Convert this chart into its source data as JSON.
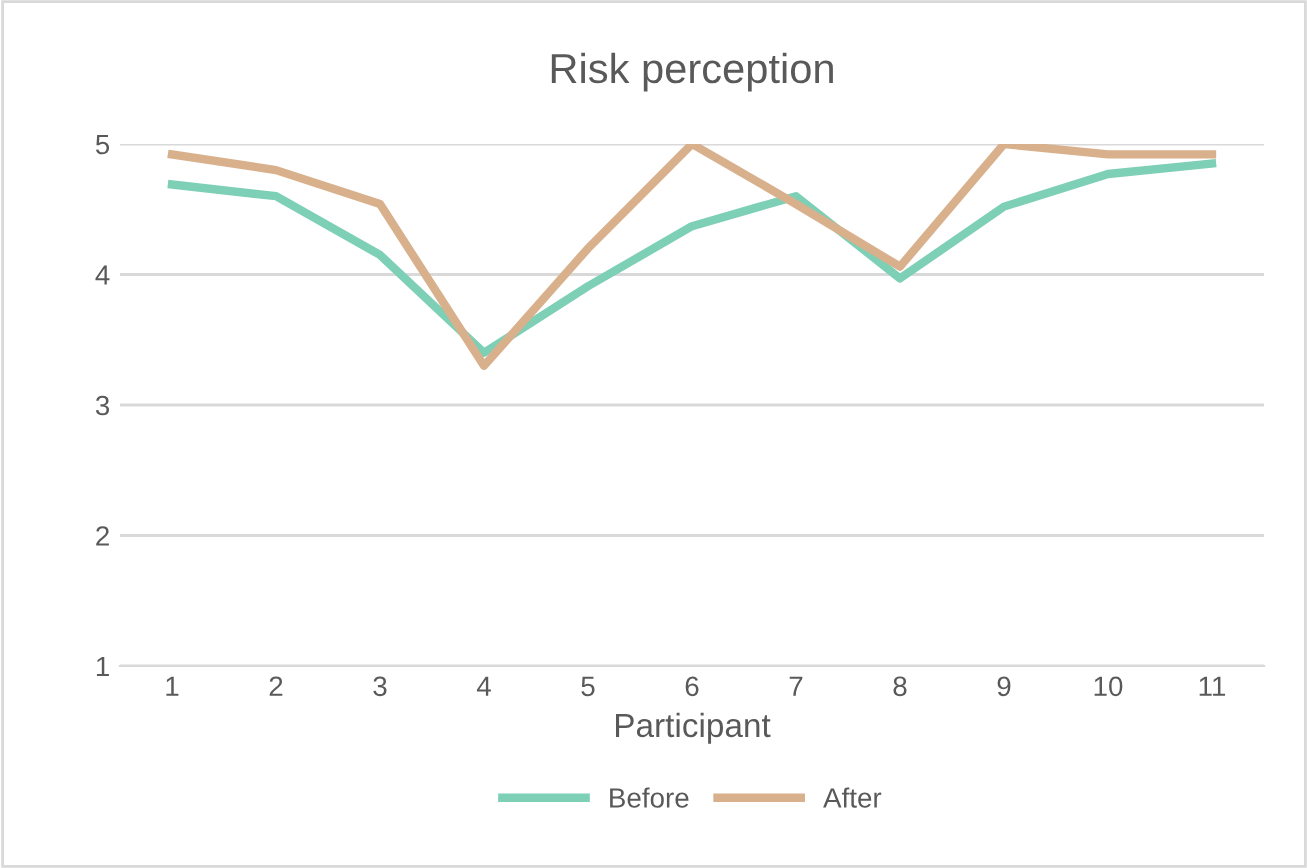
{
  "chart_data": {
    "type": "line",
    "title": "Risk perception",
    "xlabel": "Participant",
    "categories": [
      "1",
      "2",
      "3",
      "4",
      "5",
      "6",
      "7",
      "8",
      "9",
      "10",
      "11"
    ],
    "series": [
      {
        "name": "Before",
        "color": "#7dcfb6",
        "values": [
          4.69,
          4.6,
          4.15,
          3.4,
          3.91,
          4.37,
          4.6,
          3.97,
          4.52,
          4.77,
          4.85
        ]
      },
      {
        "name": "After",
        "color": "#d9b08c",
        "values": [
          4.92,
          4.8,
          4.54,
          3.3,
          4.2,
          5.0,
          4.54,
          4.06,
          5.0,
          4.92,
          4.92
        ]
      }
    ],
    "ylim": [
      1,
      5
    ],
    "yticks": [
      1,
      2,
      3,
      4,
      5
    ],
    "grid": "y",
    "legend": "bottom",
    "marker": "none",
    "line_style": "solid"
  }
}
